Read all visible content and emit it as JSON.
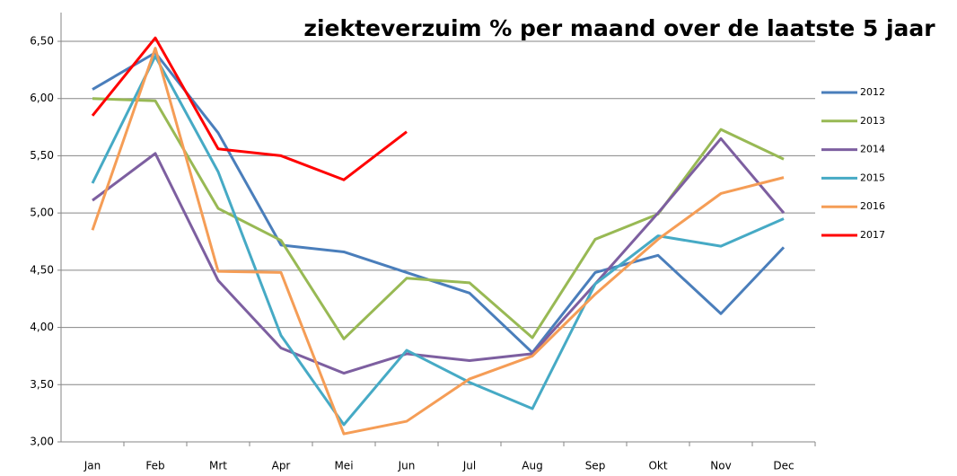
{
  "chart_data": {
    "type": "line",
    "title": "ziekteverzuim % per maand over de laatste 5 jaar",
    "categories": [
      "Jan",
      "Feb",
      "Mrt",
      "Apr",
      "Mei",
      "Jun",
      "Jul",
      "Aug",
      "Sep",
      "Okt",
      "Nov",
      "Dec"
    ],
    "series": [
      {
        "name": "2012",
        "color": "#4a7ebb",
        "values": [
          6.08,
          6.4,
          5.7,
          4.72,
          4.66,
          4.48,
          4.3,
          3.78,
          4.48,
          4.63,
          4.12,
          4.7
        ]
      },
      {
        "name": "2013",
        "color": "#98b954",
        "values": [
          6.0,
          5.98,
          5.04,
          4.76,
          3.9,
          4.43,
          4.39,
          3.91,
          4.77,
          4.99,
          5.73,
          5.47
        ]
      },
      {
        "name": "2014",
        "color": "#7d5fa0",
        "values": [
          5.11,
          5.52,
          4.41,
          3.82,
          3.6,
          3.77,
          3.71,
          3.77,
          4.38,
          5.0,
          5.65,
          5.0
        ]
      },
      {
        "name": "2015",
        "color": "#46aac5",
        "values": [
          5.26,
          6.37,
          5.36,
          3.93,
          3.15,
          3.8,
          3.52,
          3.29,
          4.38,
          4.8,
          4.71,
          4.95
        ]
      },
      {
        "name": "2016",
        "color": "#f59d56",
        "values": [
          4.85,
          6.44,
          4.49,
          4.48,
          3.07,
          3.18,
          3.55,
          3.75,
          4.29,
          4.77,
          5.17,
          5.31
        ]
      },
      {
        "name": "2017",
        "color": "#ff0000",
        "values": [
          5.85,
          6.53,
          5.56,
          5.5,
          5.29,
          5.71,
          null,
          null,
          null,
          null,
          null,
          null
        ]
      }
    ],
    "ylim": [
      3,
      6.5
    ],
    "yticks": [
      {
        "value": 3,
        "label": "3,00"
      },
      {
        "value": 3.5,
        "label": "3,50"
      },
      {
        "value": 4,
        "label": "4,00"
      },
      {
        "value": 4.5,
        "label": "4,50"
      },
      {
        "value": 5,
        "label": "5,00"
      },
      {
        "value": 5.5,
        "label": "5,50"
      },
      {
        "value": 6,
        "label": "6,00"
      },
      {
        "value": 6.5,
        "label": "6,50"
      }
    ],
    "grid": true,
    "legend": "right"
  }
}
